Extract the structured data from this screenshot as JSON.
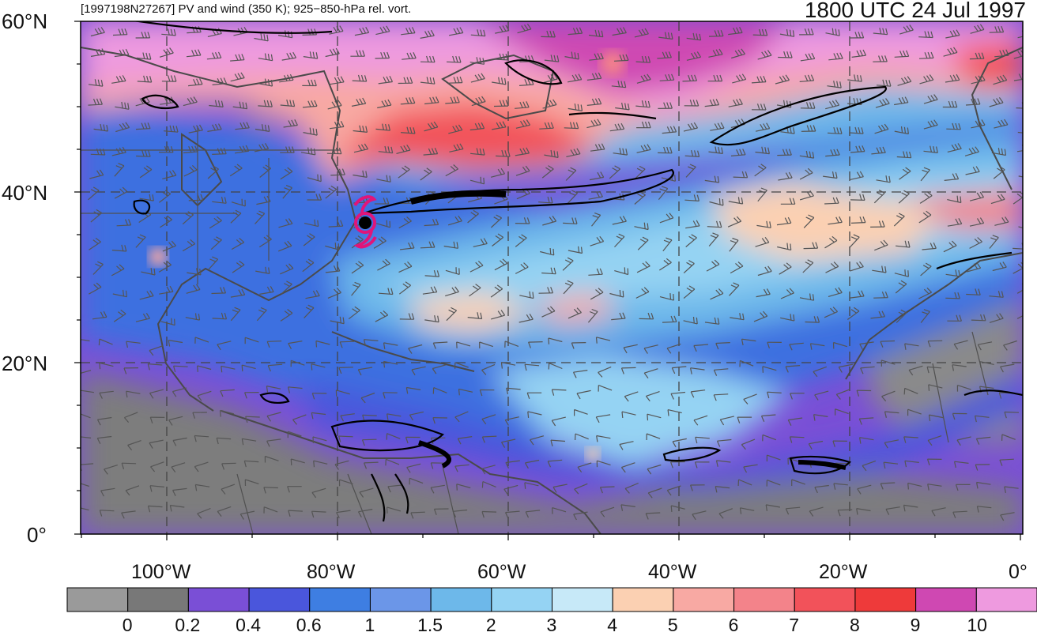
{
  "header": {
    "title": "[1997198N27267] PV and wind (350 K); 925−850-hPa rel. vort.",
    "valid_time": "1800 UTC 24 Jul 1997"
  },
  "axes": {
    "lat_labels": [
      "60°N",
      "40°N",
      "20°N",
      "0°"
    ],
    "lon_labels": [
      "100°W",
      "80°W",
      "60°W",
      "40°W",
      "20°W",
      "0°"
    ]
  },
  "colorbar": {
    "labels": [
      "0",
      "0.2",
      "0.4",
      "0.6",
      "1",
      "1.5",
      "2",
      "3",
      "4",
      "5",
      "6",
      "7",
      "8",
      "9",
      "10"
    ],
    "colors": [
      "#9a9a9a",
      "#787878",
      "#7a4fd6",
      "#4a56dc",
      "#3e7ee2",
      "#6b96e8",
      "#6db8ea",
      "#95d3f3",
      "#c7e9f8",
      "#fbd0b2",
      "#f8a9a3",
      "#f3838a",
      "#f2525a",
      "#ee3a3a",
      "#cf48b2",
      "#ee9adf"
    ]
  },
  "storm_marker": {
    "name": "tropical-cyclone-symbol",
    "color": "#e0157a"
  }
}
